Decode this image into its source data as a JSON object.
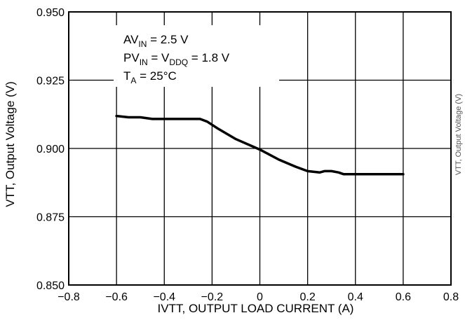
{
  "chart_data": {
    "type": "line",
    "title": "",
    "xlabel": "IVTT, OUTPUT LOAD CURRENT (A)",
    "ylabel": "VTT, Output Voltage (V)",
    "xlim": [
      -0.8,
      0.8
    ],
    "ylim": [
      0.85,
      0.95
    ],
    "x_ticks": [
      "−0.8",
      "−0.6",
      "−0.4",
      "−0.2",
      "0",
      "0.2",
      "0.4",
      "0.6",
      "0.8"
    ],
    "y_ticks": [
      "0.850",
      "0.875",
      "0.900",
      "0.925",
      "0.950"
    ],
    "grid": true,
    "annotation": {
      "line1": {
        "main": "AV",
        "sub": "IN",
        "rest": " = 2.5 V"
      },
      "line2": {
        "main": "PV",
        "sub": "IN",
        "mid": " = V",
        "sub2": "DDQ",
        "rest": " = 1.8 V"
      },
      "line3": {
        "main": "T",
        "sub": "A",
        "rest": " = 25°C"
      }
    },
    "series": [
      {
        "x": [
          -0.6,
          -0.55,
          -0.5,
          -0.45,
          -0.4,
          -0.3,
          -0.25,
          -0.22,
          -0.18,
          -0.1,
          0.0,
          0.08,
          0.15,
          0.2,
          0.25,
          0.27,
          0.3,
          0.33,
          0.35,
          0.4,
          0.5,
          0.6
        ],
        "y": [
          0.9119,
          0.9114,
          0.9114,
          0.9108,
          0.9108,
          0.9108,
          0.9108,
          0.9098,
          0.9075,
          0.9034,
          0.8996,
          0.8959,
          0.8933,
          0.8917,
          0.8912,
          0.8917,
          0.8917,
          0.8912,
          0.8906,
          0.8906,
          0.8906,
          0.8906
        ]
      }
    ]
  },
  "side_fragment": {
    "text": "VTT, Output Voltage (V)"
  }
}
